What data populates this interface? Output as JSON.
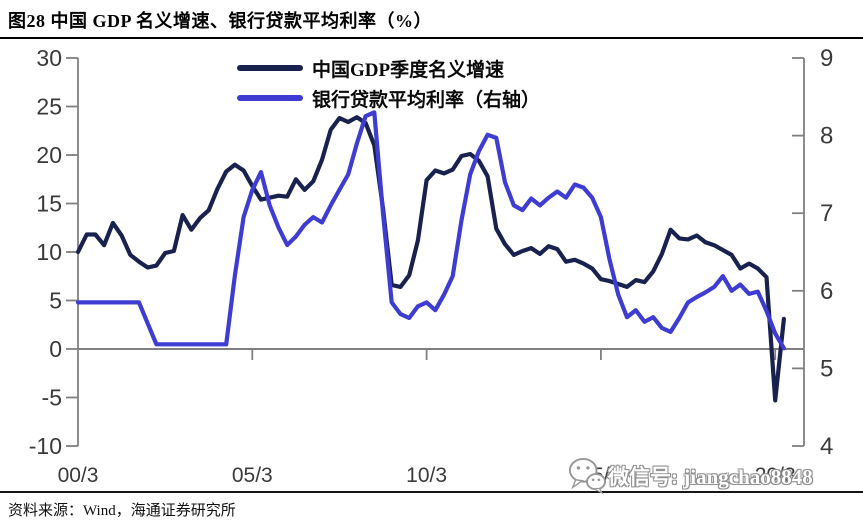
{
  "title": "图28 中国 GDP 名义增速、银行贷款平均利率（%）",
  "source_note": "资料来源：Wind，海通证券研究所",
  "watermark": {
    "icon": "wechat-icon",
    "label": "微信号: jiangchao8848"
  },
  "chart_data": {
    "type": "line",
    "title": "中国GDP名义增速、银行贷款平均利率（%）",
    "x_unit": "quarter",
    "x_start": "2000Q1",
    "x_end": "2020Q2",
    "x_ticks": [
      {
        "label": "00/3",
        "q": 0
      },
      {
        "label": "05/3",
        "q": 20
      },
      {
        "label": "10/3",
        "q": 40
      },
      {
        "label": "15/3",
        "q": 60
      },
      {
        "label": "20/3",
        "q": 80
      }
    ],
    "left_axis": {
      "ticks": [
        30,
        25,
        20,
        15,
        10,
        5,
        0,
        -5,
        -10
      ],
      "max": 30,
      "min": -10
    },
    "right_axis": {
      "ticks": [
        9,
        8,
        7,
        6,
        5,
        4
      ],
      "max": 9,
      "min": 4
    },
    "grid": false,
    "zero_line": true,
    "legend_position": "top-center",
    "axis_color": "#7f7f7f",
    "tick_label_color": "#3a3a3a",
    "series": [
      {
        "name": "中国GDP季度名义增速",
        "axis": "left",
        "color": "#19224f",
        "values": [
          10.0,
          11.8,
          11.8,
          10.7,
          13.0,
          11.7,
          9.7,
          9.0,
          8.4,
          8.6,
          9.9,
          10.1,
          13.8,
          12.3,
          13.5,
          14.3,
          16.5,
          18.3,
          19.0,
          18.4,
          16.8,
          15.4,
          15.6,
          15.8,
          15.7,
          17.5,
          16.4,
          17.3,
          19.5,
          22.6,
          23.8,
          23.4,
          23.9,
          23.3,
          21.0,
          14.5,
          6.6,
          6.4,
          7.6,
          11.2,
          17.4,
          18.4,
          18.1,
          18.5,
          19.9,
          20.1,
          19.4,
          17.8,
          12.4,
          10.8,
          9.7,
          10.1,
          10.4,
          9.8,
          10.6,
          10.3,
          9.0,
          9.2,
          8.8,
          8.3,
          7.2,
          7.0,
          6.7,
          6.4,
          7.1,
          6.9,
          8.0,
          9.8,
          12.3,
          11.4,
          11.3,
          11.7,
          11.0,
          10.7,
          10.2,
          9.7,
          8.3,
          8.8,
          8.3,
          7.4,
          -5.3,
          3.1
        ]
      },
      {
        "name": "银行贷款平均利率（右轴）",
        "axis": "right",
        "color": "#3f3dd1",
        "values": [
          5.85,
          5.85,
          5.85,
          5.85,
          5.85,
          5.85,
          5.85,
          5.85,
          5.58,
          5.31,
          5.31,
          5.31,
          5.31,
          5.31,
          5.31,
          5.31,
          5.31,
          5.31,
          6.2,
          6.95,
          7.3,
          7.53,
          7.1,
          6.82,
          6.59,
          6.7,
          6.85,
          6.95,
          6.88,
          7.1,
          7.3,
          7.5,
          7.9,
          8.25,
          8.3,
          7.0,
          5.85,
          5.7,
          5.65,
          5.8,
          5.85,
          5.75,
          5.95,
          6.19,
          6.91,
          7.5,
          7.8,
          8.01,
          7.97,
          7.4,
          7.1,
          7.04,
          7.19,
          7.1,
          7.2,
          7.28,
          7.2,
          7.37,
          7.33,
          7.2,
          6.95,
          6.4,
          5.95,
          5.66,
          5.75,
          5.6,
          5.66,
          5.52,
          5.47,
          5.65,
          5.85,
          5.92,
          5.98,
          6.05,
          6.19,
          6.0,
          6.08,
          5.96,
          5.99,
          5.74,
          5.45,
          5.26
        ]
      }
    ]
  }
}
